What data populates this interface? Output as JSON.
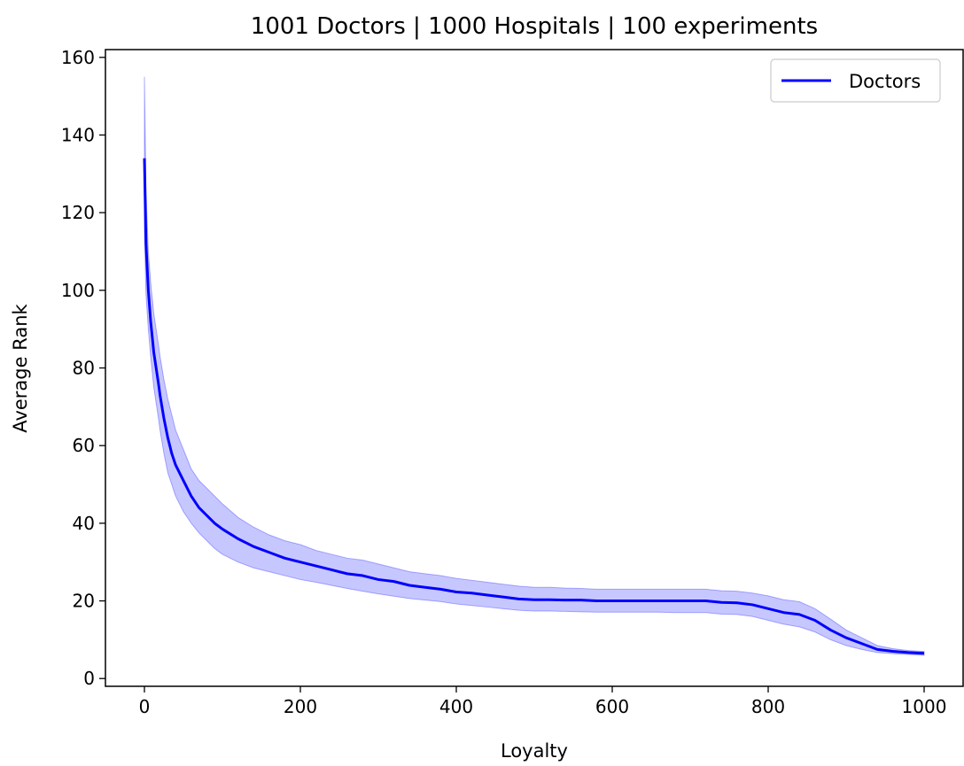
{
  "chart_data": {
    "type": "line",
    "title": "1001 Doctors | 1000 Hospitals | 100 experiments",
    "xlabel": "Loyalty",
    "ylabel": "Average Rank",
    "xlim": [
      -50,
      1050
    ],
    "ylim": [
      -2,
      162
    ],
    "xticks": [
      0,
      200,
      400,
      600,
      800,
      1000
    ],
    "yticks": [
      0,
      20,
      40,
      60,
      80,
      100,
      120,
      140,
      160
    ],
    "grid": false,
    "legend_position": "top-right",
    "series": [
      {
        "name": "Doctors",
        "color": "#0000ff",
        "band_color": "#0000ff",
        "x": [
          0,
          2,
          5,
          8,
          10,
          12,
          15,
          18,
          20,
          25,
          30,
          35,
          40,
          50,
          60,
          70,
          80,
          90,
          100,
          120,
          140,
          160,
          180,
          200,
          220,
          240,
          260,
          280,
          300,
          320,
          340,
          360,
          380,
          400,
          420,
          440,
          460,
          480,
          500,
          520,
          540,
          560,
          580,
          600,
          620,
          640,
          660,
          680,
          700,
          720,
          740,
          760,
          780,
          800,
          820,
          840,
          860,
          880,
          900,
          920,
          940,
          960,
          980,
          1000
        ],
        "mean": [
          134,
          112,
          100,
          92,
          88,
          84,
          80,
          76,
          73,
          67,
          62,
          58,
          55,
          51,
          47,
          44,
          42,
          40,
          38.5,
          36,
          34,
          32.5,
          31,
          30,
          29,
          28,
          27,
          26.5,
          25.5,
          25,
          24,
          23.5,
          23,
          22.3,
          22,
          21.5,
          21,
          20.5,
          20.3,
          20.3,
          20.2,
          20.2,
          20,
          20,
          20,
          20,
          20,
          20,
          20,
          20,
          19.6,
          19.5,
          19,
          18,
          17,
          16.5,
          15,
          12.5,
          10.5,
          9,
          7.5,
          7,
          6.7,
          6.5
        ],
        "upper": [
          155,
          126,
          110,
          102,
          98,
          94,
          90,
          86,
          83,
          77,
          72,
          68,
          64,
          59,
          54,
          51,
          49,
          47,
          45,
          41.5,
          39,
          37,
          35.5,
          34.5,
          33,
          32,
          31,
          30.5,
          29.5,
          28.5,
          27.5,
          27,
          26.5,
          25.8,
          25.3,
          24.8,
          24.3,
          23.8,
          23.5,
          23.5,
          23.3,
          23.2,
          23,
          23,
          23,
          23,
          23,
          23,
          23,
          23,
          22.6,
          22.5,
          22,
          21.3,
          20.3,
          19.8,
          18,
          15.3,
          12.5,
          10.5,
          8.5,
          7.7,
          7.2,
          7
        ],
        "lower": [
          115,
          99,
          90,
          83,
          79,
          75,
          71,
          67,
          64,
          58,
          53,
          50,
          47,
          43,
          40,
          37.5,
          35.5,
          33.5,
          32,
          30,
          28.5,
          27.5,
          26.5,
          25.5,
          24.8,
          24,
          23.2,
          22.5,
          21.8,
          21.2,
          20.6,
          20.2,
          19.8,
          19.2,
          18.8,
          18.4,
          18,
          17.6,
          17.4,
          17.4,
          17.3,
          17.2,
          17.1,
          17.1,
          17.1,
          17.1,
          17.1,
          17,
          17,
          17,
          16.6,
          16.5,
          16,
          15,
          14,
          13.3,
          12,
          10,
          8.5,
          7.5,
          6.7,
          6.4,
          6.2,
          6
        ]
      }
    ]
  }
}
